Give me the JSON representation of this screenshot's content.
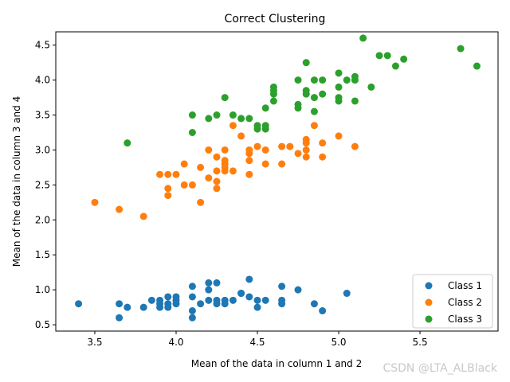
{
  "watermark": "CSDN @LTA_ALBlack",
  "chart_data": {
    "type": "scatter",
    "title": "Correct Clustering",
    "xlabel": "Mean of the data in column 1 and 2",
    "ylabel": "Mean of the data in column 3 and 4",
    "xlim": [
      3.26,
      5.98
    ],
    "ylim": [
      0.41,
      4.69
    ],
    "xticks": [
      3.5,
      4.0,
      4.5,
      5.0,
      5.5
    ],
    "yticks": [
      0.5,
      1.0,
      1.5,
      2.0,
      2.5,
      3.0,
      3.5,
      4.0,
      4.5
    ],
    "grid": false,
    "legend_position": "lower-right",
    "series": [
      {
        "name": "Class 1",
        "color": "#1f77b4",
        "points": [
          [
            3.4,
            0.8
          ],
          [
            3.65,
            0.8
          ],
          [
            3.65,
            0.6
          ],
          [
            3.7,
            0.75
          ],
          [
            3.8,
            0.75
          ],
          [
            3.85,
            0.85
          ],
          [
            3.9,
            0.85
          ],
          [
            3.9,
            0.8
          ],
          [
            3.9,
            0.75
          ],
          [
            3.95,
            0.9
          ],
          [
            3.95,
            0.8
          ],
          [
            3.95,
            0.75
          ],
          [
            4.0,
            0.9
          ],
          [
            4.0,
            0.85
          ],
          [
            4.0,
            0.8
          ],
          [
            4.1,
            1.05
          ],
          [
            4.1,
            0.9
          ],
          [
            4.1,
            0.7
          ],
          [
            4.1,
            0.6
          ],
          [
            4.15,
            0.8
          ],
          [
            4.2,
            1.1
          ],
          [
            4.2,
            1.0
          ],
          [
            4.2,
            0.85
          ],
          [
            4.25,
            1.1
          ],
          [
            4.25,
            0.85
          ],
          [
            4.25,
            0.8
          ],
          [
            4.3,
            0.85
          ],
          [
            4.3,
            0.8
          ],
          [
            4.35,
            0.85
          ],
          [
            4.4,
            0.95
          ],
          [
            4.4,
            0.95
          ],
          [
            4.45,
            1.15
          ],
          [
            4.45,
            0.9
          ],
          [
            4.5,
            0.85
          ],
          [
            4.5,
            0.75
          ],
          [
            4.55,
            0.85
          ],
          [
            4.65,
            1.05
          ],
          [
            4.65,
            0.85
          ],
          [
            4.65,
            0.8
          ],
          [
            4.75,
            1.0
          ],
          [
            4.85,
            0.8
          ],
          [
            4.9,
            0.7
          ],
          [
            5.05,
            0.95
          ]
        ]
      },
      {
        "name": "Class 2",
        "color": "#ff7f0e",
        "points": [
          [
            3.5,
            2.25
          ],
          [
            3.65,
            2.15
          ],
          [
            3.8,
            2.05
          ],
          [
            3.9,
            2.65
          ],
          [
            3.95,
            2.65
          ],
          [
            3.95,
            2.45
          ],
          [
            3.95,
            2.35
          ],
          [
            4.0,
            2.65
          ],
          [
            4.05,
            2.8
          ],
          [
            4.05,
            2.5
          ],
          [
            4.1,
            2.5
          ],
          [
            4.15,
            2.75
          ],
          [
            4.15,
            2.25
          ],
          [
            4.2,
            3.0
          ],
          [
            4.2,
            2.6
          ],
          [
            4.25,
            2.9
          ],
          [
            4.25,
            2.7
          ],
          [
            4.25,
            2.55
          ],
          [
            4.25,
            2.45
          ],
          [
            4.3,
            3.0
          ],
          [
            4.3,
            2.85
          ],
          [
            4.3,
            2.8
          ],
          [
            4.3,
            2.75
          ],
          [
            4.3,
            2.7
          ],
          [
            4.35,
            3.35
          ],
          [
            4.35,
            2.7
          ],
          [
            4.4,
            3.2
          ],
          [
            4.45,
            3.0
          ],
          [
            4.45,
            2.95
          ],
          [
            4.45,
            2.85
          ],
          [
            4.45,
            2.65
          ],
          [
            4.5,
            3.05
          ],
          [
            4.55,
            3.0
          ],
          [
            4.55,
            2.8
          ],
          [
            4.65,
            3.05
          ],
          [
            4.65,
            2.8
          ],
          [
            4.7,
            3.05
          ],
          [
            4.75,
            2.95
          ],
          [
            4.8,
            3.15
          ],
          [
            4.8,
            3.1
          ],
          [
            4.8,
            3.0
          ],
          [
            4.8,
            2.9
          ],
          [
            4.85,
            3.35
          ],
          [
            4.9,
            3.1
          ],
          [
            4.9,
            2.9
          ],
          [
            5.0,
            3.2
          ],
          [
            5.1,
            3.05
          ]
        ]
      },
      {
        "name": "Class 3",
        "color": "#2ca02c",
        "points": [
          [
            3.7,
            3.1
          ],
          [
            4.1,
            3.5
          ],
          [
            4.1,
            3.25
          ],
          [
            4.2,
            3.45
          ],
          [
            4.25,
            3.5
          ],
          [
            4.3,
            3.75
          ],
          [
            4.35,
            3.5
          ],
          [
            4.4,
            3.45
          ],
          [
            4.45,
            3.45
          ],
          [
            4.5,
            3.35
          ],
          [
            4.5,
            3.3
          ],
          [
            4.55,
            3.6
          ],
          [
            4.55,
            3.35
          ],
          [
            4.55,
            3.3
          ],
          [
            4.6,
            3.9
          ],
          [
            4.6,
            3.85
          ],
          [
            4.6,
            3.8
          ],
          [
            4.6,
            3.7
          ],
          [
            4.75,
            4.0
          ],
          [
            4.75,
            3.65
          ],
          [
            4.75,
            3.6
          ],
          [
            4.8,
            4.25
          ],
          [
            4.8,
            3.85
          ],
          [
            4.8,
            3.8
          ],
          [
            4.85,
            4.0
          ],
          [
            4.85,
            3.75
          ],
          [
            4.85,
            3.55
          ],
          [
            4.9,
            4.0
          ],
          [
            4.9,
            3.8
          ],
          [
            5.0,
            4.1
          ],
          [
            5.0,
            3.9
          ],
          [
            5.0,
            3.75
          ],
          [
            5.0,
            3.7
          ],
          [
            5.05,
            4.0
          ],
          [
            5.1,
            4.05
          ],
          [
            5.1,
            4.0
          ],
          [
            5.1,
            3.7
          ],
          [
            5.15,
            4.6
          ],
          [
            5.2,
            3.9
          ],
          [
            5.25,
            4.35
          ],
          [
            5.3,
            4.35
          ],
          [
            5.35,
            4.2
          ],
          [
            5.4,
            4.3
          ],
          [
            5.75,
            4.45
          ],
          [
            5.85,
            4.2
          ]
        ]
      }
    ]
  }
}
